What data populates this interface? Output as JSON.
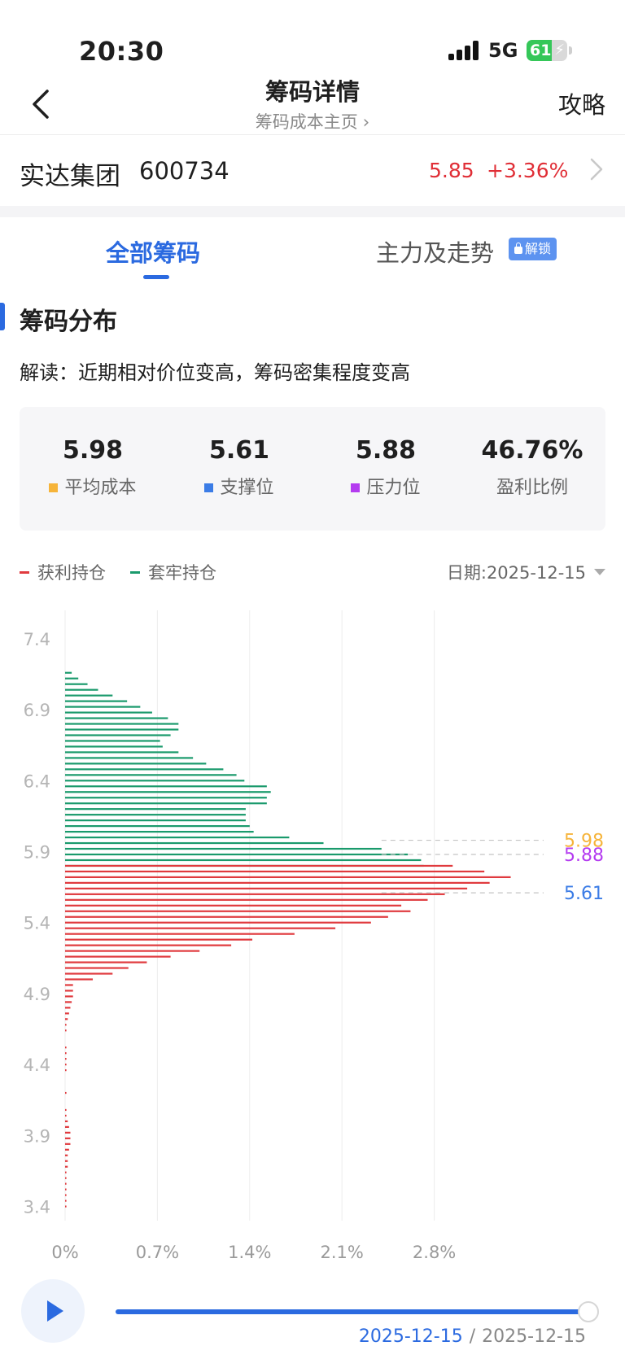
{
  "status_bar": {
    "time": "20:30",
    "network": "5G",
    "battery": 61
  },
  "nav": {
    "title": "筹码详情",
    "subtitle": "筹码成本主页",
    "right_link": "攻略"
  },
  "stock": {
    "name": "实达集团",
    "code": "600734",
    "price": "5.85",
    "change": "+3.36%"
  },
  "tabs": {
    "all": "全部筹码",
    "main": "主力及走势",
    "unlock_badge": "解锁"
  },
  "section": {
    "title": "筹码分布",
    "interpretation": "解读：近期相对价位变高，筹码密集程度变高"
  },
  "stats": [
    {
      "value": "5.98",
      "label": "平均成本",
      "color": "#f6b43a"
    },
    {
      "value": "5.61",
      "label": "支撑位",
      "color": "#3b7ce6"
    },
    {
      "value": "5.88",
      "label": "压力位",
      "color": "#b43bf0"
    },
    {
      "value": "46.76%",
      "label": "盈利比例"
    }
  ],
  "legend": {
    "profit": {
      "label": "获利持仓",
      "color": "#e03a3e"
    },
    "trapped": {
      "label": "套牢持仓",
      "color": "#1a9a6c"
    },
    "date_label": "日期:2025-12-15"
  },
  "chart_data": {
    "type": "bar",
    "orientation": "horizontal",
    "ylim": [
      3.3,
      7.6
    ],
    "xlim": [
      0,
      3.3
    ],
    "y_ticks": [
      "7.4",
      "6.9",
      "6.4",
      "5.9",
      "5.4",
      "4.9",
      "4.4",
      "3.9",
      "3.4"
    ],
    "x_ticks": [
      "0%",
      "0.7%",
      "1.4%",
      "2.1%",
      "2.8%"
    ],
    "x_tick_values": [
      0,
      0.7,
      1.4,
      2.1,
      2.8
    ],
    "current_price": 5.85,
    "markers": [
      {
        "value": 5.98,
        "label": "5.98",
        "color": "#f6b43a"
      },
      {
        "value": 5.88,
        "label": "5.88",
        "color": "#b43bf0"
      },
      {
        "value": 5.61,
        "label": "5.61",
        "color": "#3b7ce6"
      }
    ],
    "series": [
      {
        "name": "套牢持仓",
        "color": "#1a9a6c",
        "bins": [
          [
            7.16,
            0.05
          ],
          [
            7.12,
            0.1
          ],
          [
            7.08,
            0.17
          ],
          [
            7.04,
            0.25
          ],
          [
            7.0,
            0.36
          ],
          [
            6.96,
            0.47
          ],
          [
            6.92,
            0.57
          ],
          [
            6.88,
            0.66
          ],
          [
            6.84,
            0.78
          ],
          [
            6.8,
            0.86
          ],
          [
            6.76,
            0.86
          ],
          [
            6.72,
            0.8
          ],
          [
            6.68,
            0.72
          ],
          [
            6.64,
            0.74
          ],
          [
            6.6,
            0.86
          ],
          [
            6.56,
            0.97
          ],
          [
            6.52,
            1.07
          ],
          [
            6.48,
            1.2
          ],
          [
            6.44,
            1.3
          ],
          [
            6.4,
            1.36
          ],
          [
            6.36,
            1.53
          ],
          [
            6.32,
            1.56
          ],
          [
            6.28,
            1.53
          ],
          [
            6.24,
            1.53
          ],
          [
            6.2,
            1.37
          ],
          [
            6.16,
            1.37
          ],
          [
            6.12,
            1.37
          ],
          [
            6.08,
            1.4
          ],
          [
            6.04,
            1.43
          ],
          [
            6.0,
            1.7
          ],
          [
            5.96,
            1.96
          ],
          [
            5.92,
            2.4
          ],
          [
            5.88,
            2.6
          ],
          [
            5.84,
            2.7
          ],
          [
            5.8,
            2.72
          ]
        ]
      },
      {
        "name": "获利持仓",
        "color": "#e03a3e",
        "bins": [
          [
            5.8,
            2.94
          ],
          [
            5.76,
            3.18
          ],
          [
            5.72,
            3.38
          ],
          [
            5.68,
            3.22
          ],
          [
            5.64,
            3.05
          ],
          [
            5.6,
            2.88
          ],
          [
            5.56,
            2.75
          ],
          [
            5.52,
            2.55
          ],
          [
            5.48,
            2.62
          ],
          [
            5.44,
            2.45
          ],
          [
            5.4,
            2.32
          ],
          [
            5.36,
            2.05
          ],
          [
            5.32,
            1.74
          ],
          [
            5.28,
            1.42
          ],
          [
            5.24,
            1.26
          ],
          [
            5.2,
            1.02
          ],
          [
            5.16,
            0.8
          ],
          [
            5.12,
            0.62
          ],
          [
            5.08,
            0.48
          ],
          [
            5.04,
            0.36
          ],
          [
            5.0,
            0.21
          ],
          [
            4.96,
            0.06
          ],
          [
            4.92,
            0.06
          ],
          [
            4.88,
            0.06
          ],
          [
            4.84,
            0.05
          ],
          [
            4.8,
            0.04
          ],
          [
            4.76,
            0.03
          ],
          [
            4.72,
            0.02
          ],
          [
            4.68,
            0.01
          ],
          [
            4.64,
            0.01
          ],
          [
            4.52,
            0.01
          ],
          [
            4.48,
            0.01
          ],
          [
            4.44,
            0.01
          ],
          [
            4.4,
            0.01
          ],
          [
            4.36,
            0.01
          ],
          [
            4.2,
            0.01
          ],
          [
            4.08,
            0.01
          ],
          [
            4.04,
            0.01
          ],
          [
            4.0,
            0.02
          ],
          [
            3.96,
            0.03
          ],
          [
            3.92,
            0.04
          ],
          [
            3.88,
            0.04
          ],
          [
            3.84,
            0.04
          ],
          [
            3.8,
            0.03
          ],
          [
            3.76,
            0.02
          ],
          [
            3.72,
            0.02
          ],
          [
            3.68,
            0.02
          ],
          [
            3.64,
            0.01
          ],
          [
            3.6,
            0.01
          ],
          [
            3.56,
            0.01
          ],
          [
            3.52,
            0.01
          ],
          [
            3.48,
            0.01
          ],
          [
            3.44,
            0.01
          ],
          [
            3.4,
            0.01
          ]
        ]
      }
    ]
  },
  "player": {
    "current_date": "2025-12-15",
    "end_date": "2025-12-15",
    "progress": 1.0
  }
}
